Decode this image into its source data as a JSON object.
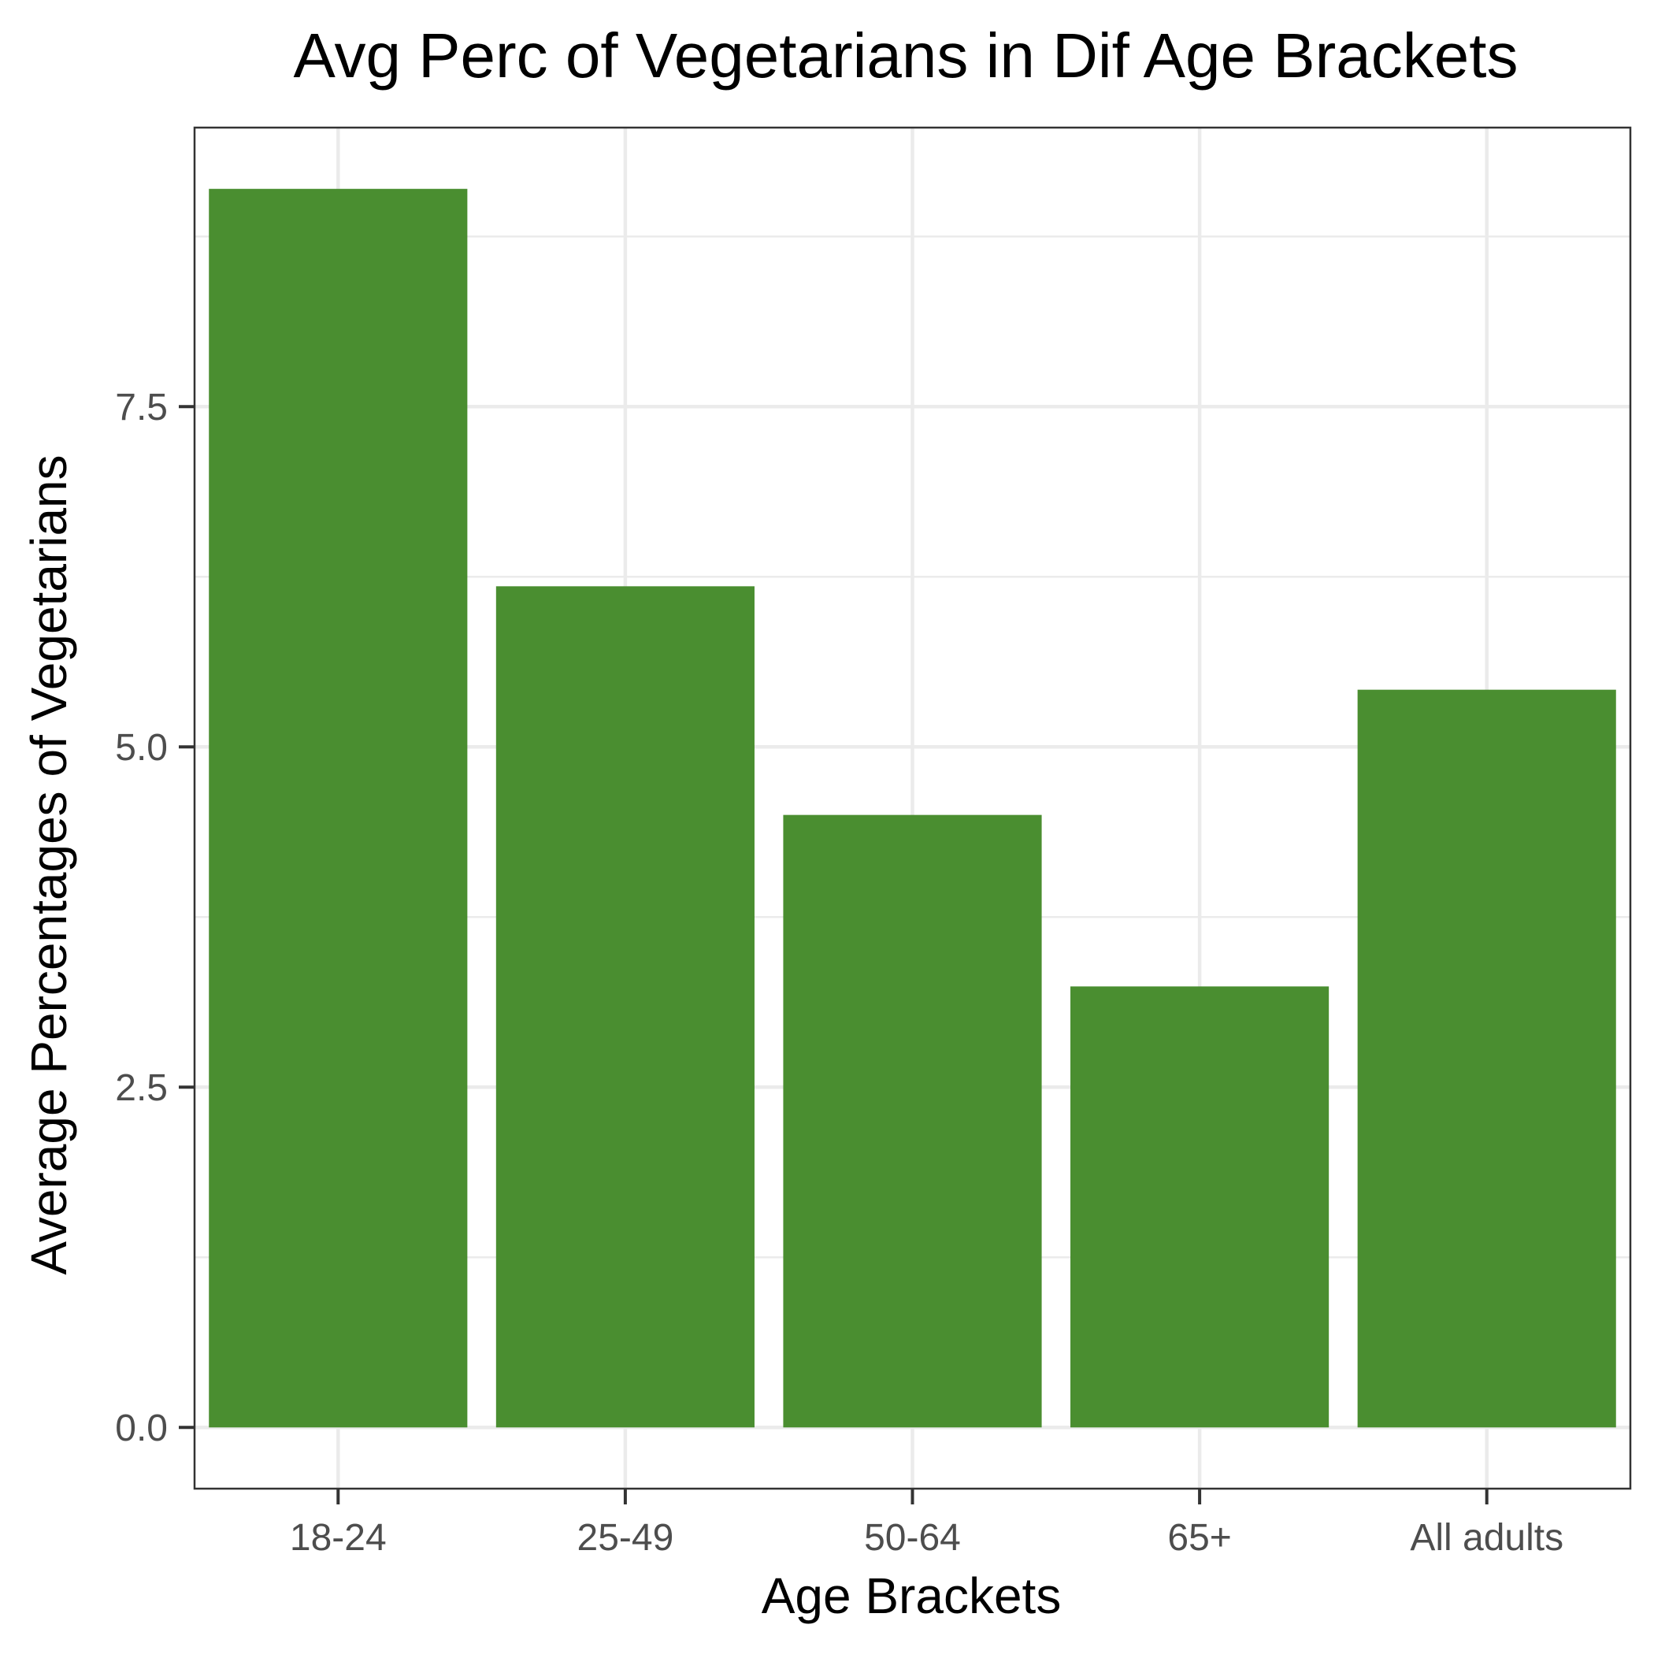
{
  "chart_data": {
    "type": "bar",
    "title": "Avg Perc of Vegetarians in Dif Age Brackets",
    "xlabel": "Age Brackets",
    "ylabel": "Average Percentages of Vegetarians",
    "categories": [
      "18-24",
      "25-49",
      "50-64",
      "65+",
      "All adults"
    ],
    "values": [
      9.1,
      6.18,
      4.5,
      3.24,
      5.42
    ],
    "ylim": [
      -0.45,
      9.55
    ],
    "y_ticks": [
      0.0,
      2.5,
      5.0,
      7.5
    ],
    "y_tick_labels": [
      "0.0",
      "2.5",
      "5.0",
      "7.5"
    ],
    "y_minor_ticks": [
      1.25,
      3.75,
      6.25,
      8.75
    ],
    "grid": true,
    "legend": "none",
    "colors": {
      "bar": "#4a8e30",
      "grid": "#ebebeb",
      "panel_border": "#333333",
      "tick_label": "#4d4d4d",
      "text": "#000000"
    }
  }
}
